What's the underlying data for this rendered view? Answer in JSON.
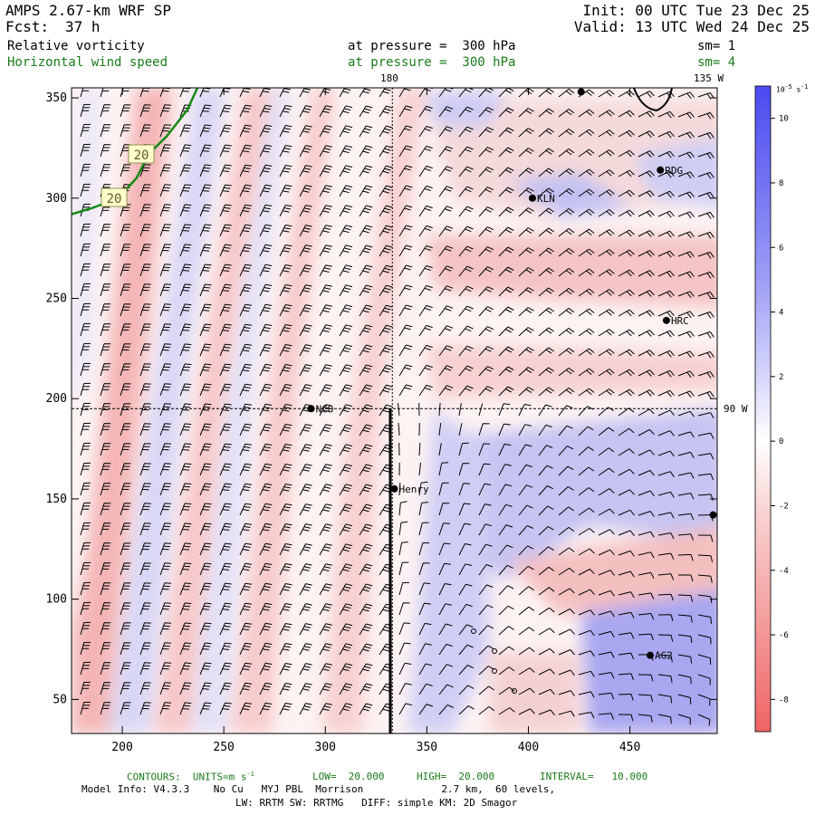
{
  "header": {
    "model": "AMPS 2.67-km WRF SP",
    "fcst_label": "Fcst:",
    "fcst_value": "37 h",
    "init": "Init: 00 UTC Tue 23 Dec 25",
    "valid": "Valid: 13 UTC Wed 24 Dec 25",
    "field1": "Relative vorticity",
    "field1_level": "at pressure =  300 hPa",
    "field1_sm": "sm= 1",
    "field2": "Horizontal wind speed",
    "field2_level": "at pressure =  300 hPa",
    "field2_sm": "sm= 4"
  },
  "footer": {
    "contours": "CONTOURS:  UNITS=m s",
    "contours_exp": "-1",
    "low": "LOW=  20.000",
    "high": "HIGH=  20.000",
    "interval": "INTERVAL=   10.000",
    "model_info": "Model Info: V4.3.3    No Cu   MYJ PBL  Morrison             2.7 km,  60 levels,",
    "model_info2": "LW: RRTM SW: RRTMG   DIFF: simple KM: 2D Smagor"
  },
  "colorbar": {
    "unit_text": "10",
    "unit_exp": "-5",
    "unit_tail": " s",
    "unit_tail_exp": "-1",
    "ticks": [
      "10",
      "8",
      "6",
      "4",
      "2",
      "0",
      "-2",
      "-4",
      "-6",
      "-8"
    ],
    "colors": {
      "max_blue": "#4b4bf0",
      "white": "#ffffff",
      "max_red": "#f06464"
    }
  },
  "map_labels": {
    "lon_180": "180",
    "lon_135w": "135 W",
    "lat_90w": "90 W",
    "wind_contour_labels": [
      "20",
      "20"
    ]
  },
  "chart_data": {
    "type": "heatmap",
    "title": "Relative vorticity",
    "xlim": [
      175,
      493
    ],
    "ylim": [
      33,
      355
    ],
    "x_ticks": [
      "200",
      "250",
      "300",
      "350",
      "400",
      "450"
    ],
    "y_ticks": [
      "50",
      "100",
      "150",
      "200",
      "250",
      "300",
      "350"
    ],
    "grid": false,
    "colormap_range": [
      -9,
      11
    ],
    "stations": [
      {
        "name": "NCO",
        "x": 293,
        "y": 195
      },
      {
        "name": "Henry",
        "x": 334,
        "y": 155
      },
      {
        "name": "KLN",
        "x": 402,
        "y": 300
      },
      {
        "name": "RDG",
        "x": 465,
        "y": 314
      },
      {
        "name": "HRC",
        "x": 468,
        "y": 239
      },
      {
        "name": "AG2",
        "x": 460,
        "y": 72
      },
      {
        "name": "",
        "x": 426,
        "y": 353
      },
      {
        "name": "",
        "x": 491,
        "y": 142
      }
    ],
    "meridian_x": 333,
    "parallel_y": 195,
    "wind_contour_20": [
      [
        175,
        292
      ],
      [
        185,
        295
      ],
      [
        198,
        300
      ],
      [
        207,
        310
      ],
      [
        213,
        322
      ],
      [
        222,
        331
      ],
      [
        232,
        344
      ],
      [
        237,
        355
      ]
    ]
  }
}
